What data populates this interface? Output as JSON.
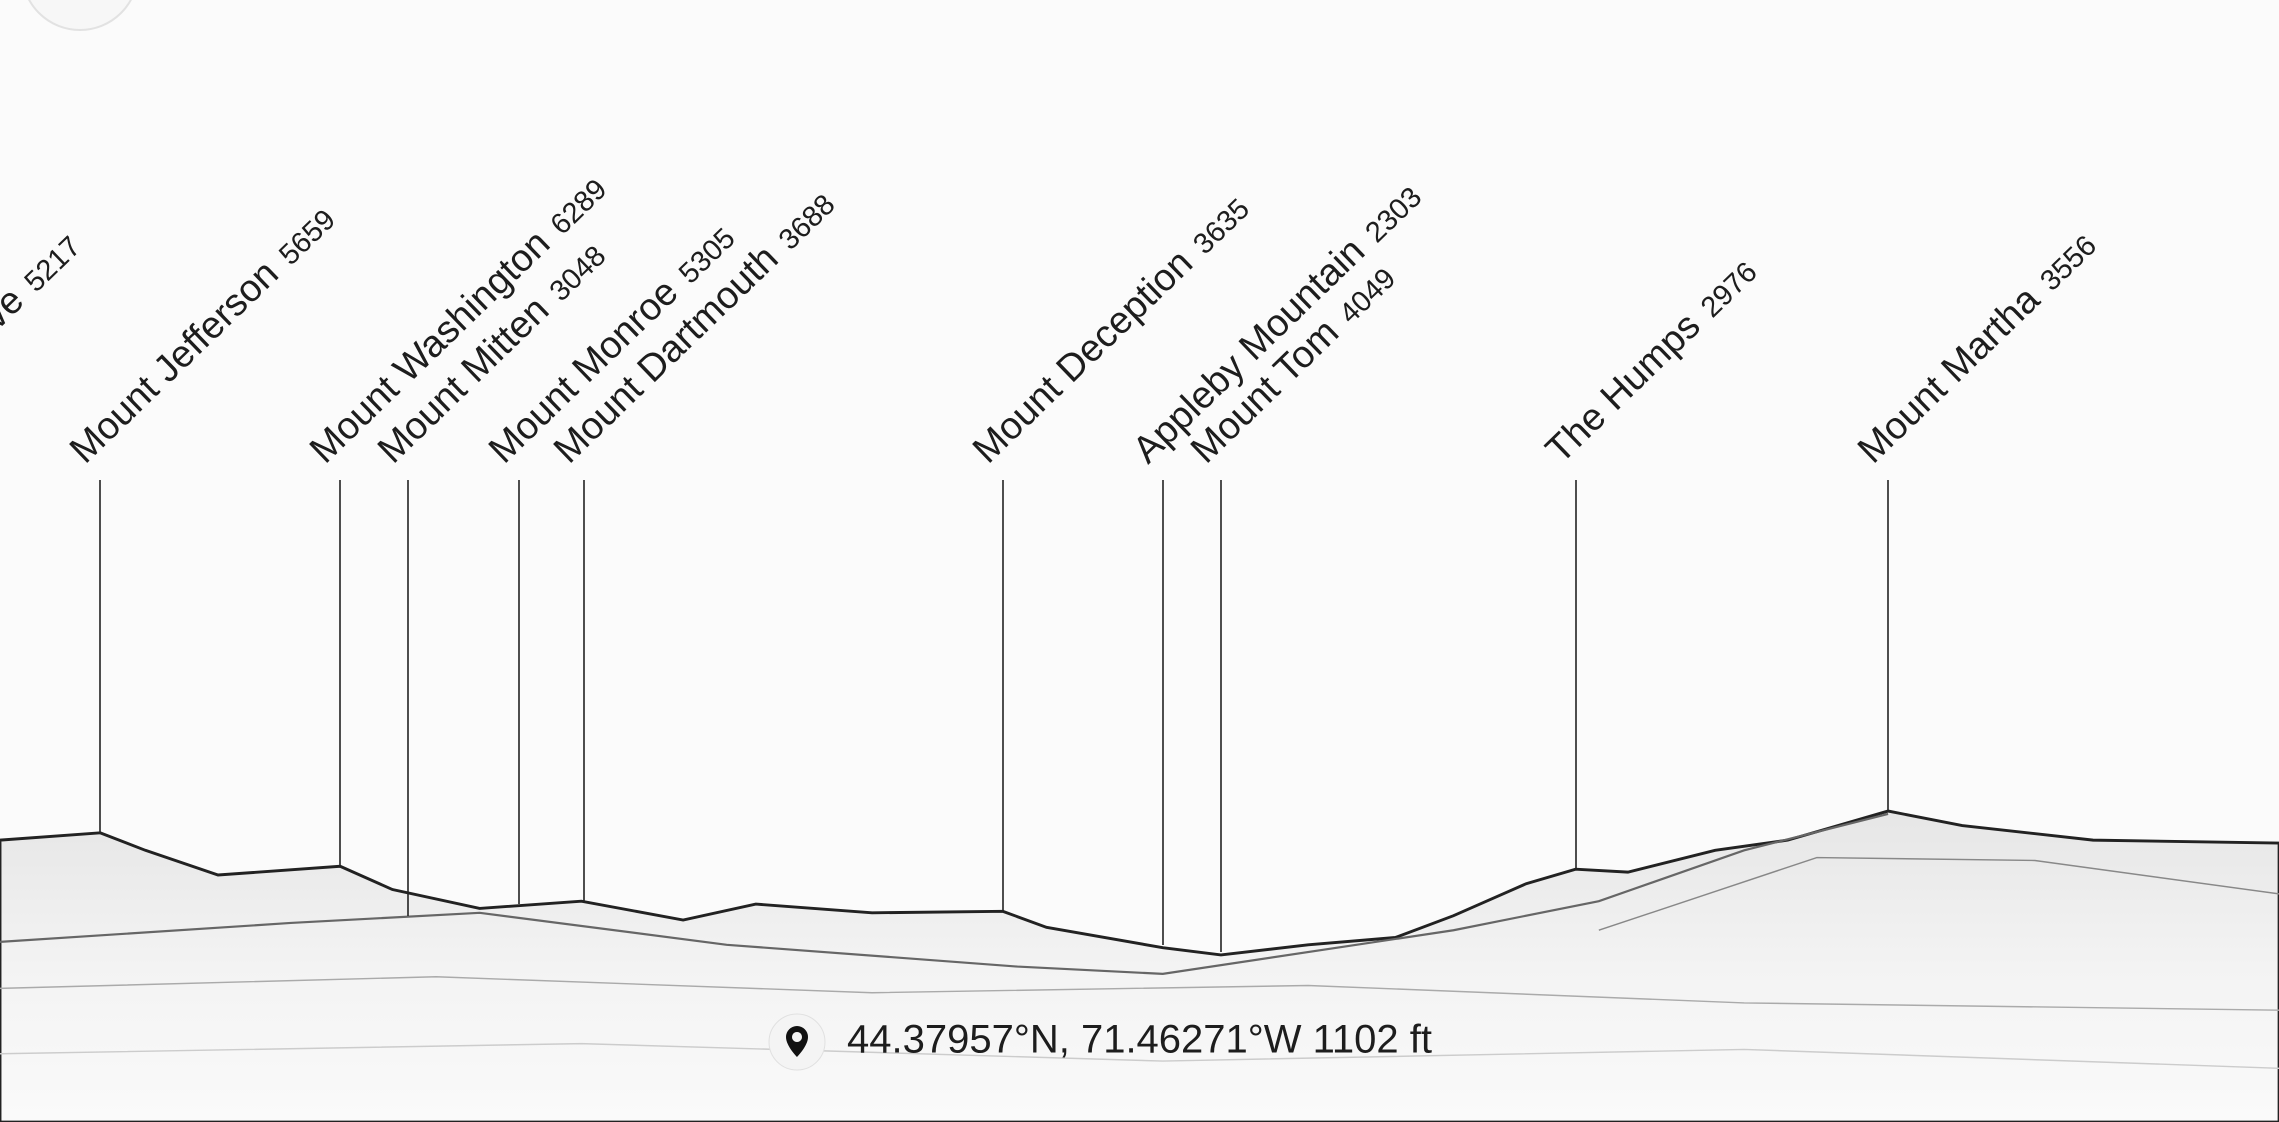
{
  "peaks": [
    {
      "name": "ve",
      "elevation": 5217
    },
    {
      "name": "Mount Jefferson",
      "elevation": 5659
    },
    {
      "name": "Mount Washington",
      "elevation": 6289
    },
    {
      "name": "Mount Mitten",
      "elevation": 3048
    },
    {
      "name": "Mount Monroe",
      "elevation": 5305
    },
    {
      "name": "Mount Dartmouth",
      "elevation": 3688
    },
    {
      "name": "Mount Deception",
      "elevation": 3635
    },
    {
      "name": "Appleby Mountain",
      "elevation": 2303
    },
    {
      "name": "Mount Tom",
      "elevation": 4049
    },
    {
      "name": "The Humps",
      "elevation": 2976
    },
    {
      "name": "Mount Martha",
      "elevation": 3556
    }
  ],
  "location": {
    "text": "44.37957°N, 71.46271°W 1102 ft"
  }
}
